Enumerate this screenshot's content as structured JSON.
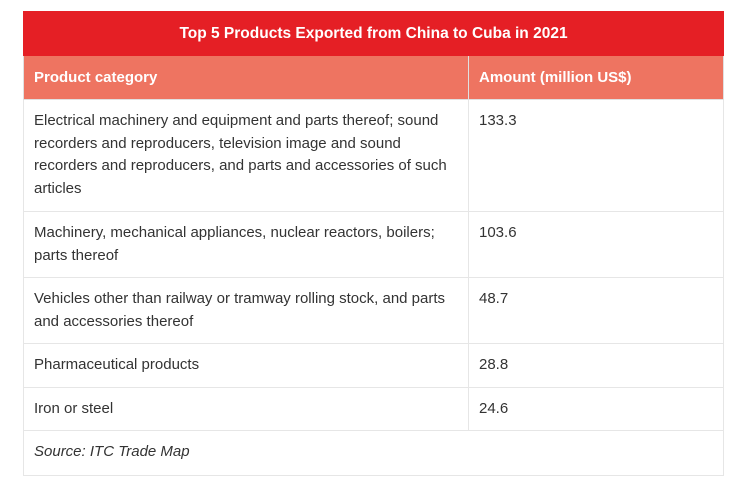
{
  "table": {
    "title": "Top 5 Products Exported from China to Cuba in 2021",
    "headers": [
      "Product category",
      "Amount (million US$)"
    ],
    "rows": [
      {
        "category": "Electrical machinery and equipment and parts thereof; sound recorders and reproducers, television image and sound recorders and reproducers, and parts and accessories of such articles",
        "amount": "133.3"
      },
      {
        "category": "Machinery, mechanical appliances, nuclear reactors, boilers; parts thereof",
        "amount": "103.6"
      },
      {
        "category": "Vehicles other than railway or tramway rolling stock, and parts and accessories thereof",
        "amount": "48.7"
      },
      {
        "category": "Pharmaceutical products",
        "amount": "28.8"
      },
      {
        "category": "Iron or steel",
        "amount": "24.6"
      }
    ],
    "source": "Source: ITC Trade Map"
  },
  "colors": {
    "title_bg": "#e51f25",
    "header_bg": "#ee7461",
    "text": "#333333"
  }
}
